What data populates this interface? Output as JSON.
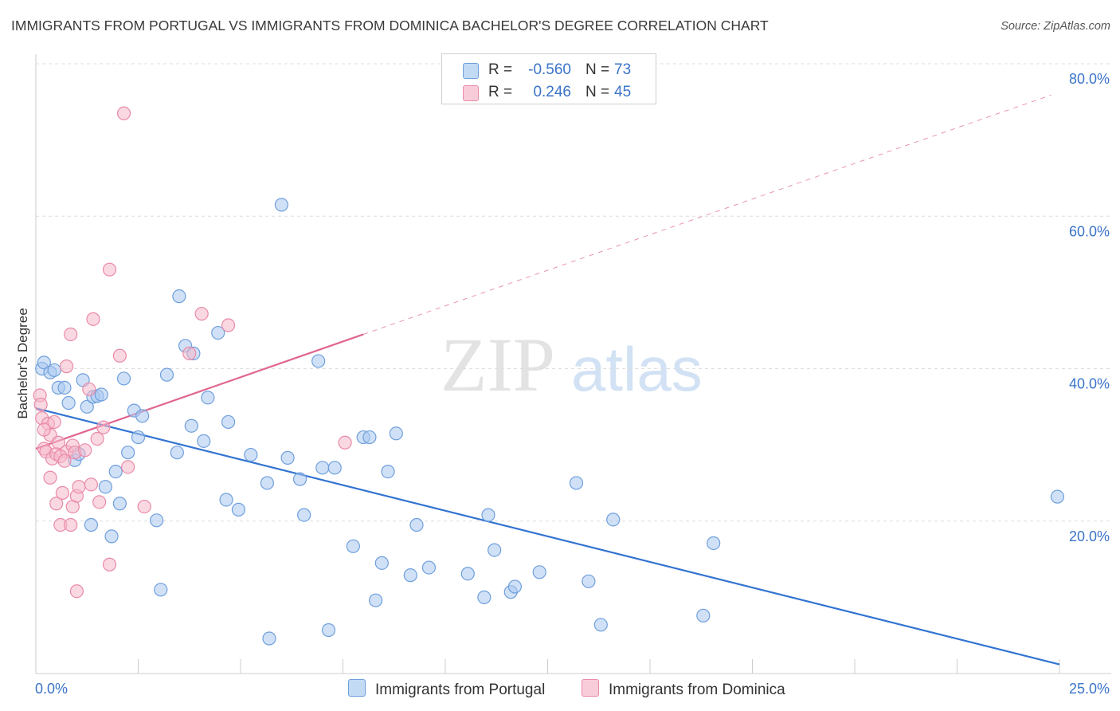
{
  "title": "IMMIGRANTS FROM PORTUGAL VS IMMIGRANTS FROM DOMINICA BACHELOR'S DEGREE CORRELATION CHART",
  "source": "Source: ZipAtlas.com",
  "watermark": {
    "zip": "ZIP",
    "atlas": "atlas"
  },
  "colors": {
    "portugal_fill": "#a9c8f0",
    "portugal_stroke": "#6f9fdc",
    "portugal_line": "#3274d1",
    "dominica_fill": "#f6b8cb",
    "dominica_stroke": "#e98aa8",
    "dominica_line": "#e0668f",
    "axis_label": "#3b74c9",
    "grid": "#dddddd"
  },
  "legend": {
    "rows": [
      {
        "r_label": "R =",
        "r_value": "-0.560",
        "n_label": "N =",
        "n_value": "73"
      },
      {
        "r_label": "R =",
        "r_value": "0.246",
        "n_label": "N =",
        "n_value": "45"
      }
    ]
  },
  "chart_data": {
    "type": "scatter",
    "xlabel": "",
    "ylabel": "Bachelor's Degree",
    "xlim": [
      0,
      25
    ],
    "ylim": [
      0,
      80
    ],
    "x_tick_labels": [
      "0.0%",
      "25.0%"
    ],
    "y_tick_labels": [
      "20.0%",
      "40.0%",
      "60.0%",
      "80.0%"
    ],
    "grid": true,
    "legend_position": "bottom-center",
    "series": [
      {
        "name": "Immigrants from Portugal",
        "points": [
          [
            0.15,
            40.0
          ],
          [
            0.2,
            40.8
          ],
          [
            0.35,
            39.5
          ],
          [
            0.45,
            39.8
          ],
          [
            0.55,
            37.5
          ],
          [
            0.7,
            37.5
          ],
          [
            0.8,
            35.5
          ],
          [
            0.95,
            28.0
          ],
          [
            1.05,
            28.8
          ],
          [
            1.15,
            38.5
          ],
          [
            1.25,
            35.0
          ],
          [
            1.4,
            36.3
          ],
          [
            1.5,
            36.4
          ],
          [
            1.6,
            36.6
          ],
          [
            1.35,
            19.5
          ],
          [
            1.7,
            24.5
          ],
          [
            1.85,
            18.0
          ],
          [
            1.95,
            26.5
          ],
          [
            2.05,
            22.3
          ],
          [
            2.15,
            38.7
          ],
          [
            2.25,
            29.0
          ],
          [
            2.4,
            34.5
          ],
          [
            2.5,
            31.0
          ],
          [
            2.6,
            33.8
          ],
          [
            2.95,
            20.1
          ],
          [
            3.05,
            11.0
          ],
          [
            3.2,
            39.2
          ],
          [
            3.5,
            49.5
          ],
          [
            3.45,
            29.0
          ],
          [
            3.65,
            43.0
          ],
          [
            3.85,
            42.0
          ],
          [
            3.8,
            32.5
          ],
          [
            4.1,
            30.5
          ],
          [
            4.2,
            36.2
          ],
          [
            4.45,
            44.7
          ],
          [
            4.7,
            33.0
          ],
          [
            4.65,
            22.8
          ],
          [
            4.95,
            21.5
          ],
          [
            5.25,
            28.7
          ],
          [
            5.7,
            4.6
          ],
          [
            5.65,
            25.0
          ],
          [
            6.0,
            61.5
          ],
          [
            6.15,
            28.3
          ],
          [
            6.45,
            25.5
          ],
          [
            6.55,
            20.8
          ],
          [
            6.9,
            41.0
          ],
          [
            7.0,
            27.0
          ],
          [
            7.15,
            5.7
          ],
          [
            7.3,
            27.0
          ],
          [
            7.75,
            16.7
          ],
          [
            8.0,
            31.0
          ],
          [
            8.15,
            31.0
          ],
          [
            8.3,
            9.6
          ],
          [
            8.45,
            14.5
          ],
          [
            8.6,
            26.5
          ],
          [
            8.8,
            31.5
          ],
          [
            9.15,
            12.9
          ],
          [
            9.3,
            19.5
          ],
          [
            9.6,
            13.9
          ],
          [
            10.55,
            13.1
          ],
          [
            10.95,
            10.0
          ],
          [
            11.05,
            20.8
          ],
          [
            11.2,
            16.2
          ],
          [
            11.6,
            10.7
          ],
          [
            11.7,
            11.4
          ],
          [
            12.3,
            13.3
          ],
          [
            13.2,
            25.0
          ],
          [
            13.5,
            12.1
          ],
          [
            13.8,
            6.4
          ],
          [
            14.1,
            20.2
          ],
          [
            16.3,
            7.6
          ],
          [
            16.55,
            17.1
          ],
          [
            24.95,
            23.2
          ]
        ]
      },
      {
        "name": "Immigrants from Dominica",
        "points": [
          [
            0.1,
            36.5
          ],
          [
            0.12,
            35.3
          ],
          [
            0.15,
            33.5
          ],
          [
            0.2,
            29.5
          ],
          [
            0.25,
            29.1
          ],
          [
            0.3,
            32.8
          ],
          [
            0.35,
            31.3
          ],
          [
            0.35,
            25.7
          ],
          [
            0.4,
            28.2
          ],
          [
            0.45,
            33.0
          ],
          [
            0.5,
            28.8
          ],
          [
            0.5,
            22.3
          ],
          [
            0.55,
            30.3
          ],
          [
            0.6,
            19.5
          ],
          [
            0.65,
            23.7
          ],
          [
            0.75,
            40.3
          ],
          [
            0.75,
            29.1
          ],
          [
            0.85,
            44.5
          ],
          [
            0.85,
            19.5
          ],
          [
            0.9,
            21.9
          ],
          [
            0.9,
            29.9
          ],
          [
            0.95,
            29.0
          ],
          [
            1.0,
            23.3
          ],
          [
            1.0,
            10.8
          ],
          [
            1.05,
            24.5
          ],
          [
            1.2,
            29.3
          ],
          [
            1.3,
            37.3
          ],
          [
            1.35,
            24.8
          ],
          [
            1.4,
            46.5
          ],
          [
            1.5,
            30.8
          ],
          [
            1.55,
            22.5
          ],
          [
            1.65,
            32.3
          ],
          [
            1.8,
            14.3
          ],
          [
            1.8,
            53.0
          ],
          [
            2.05,
            41.7
          ],
          [
            2.15,
            73.5
          ],
          [
            2.25,
            27.1
          ],
          [
            2.65,
            21.9
          ],
          [
            3.75,
            42.0
          ],
          [
            4.05,
            47.2
          ],
          [
            4.7,
            45.7
          ],
          [
            7.55,
            30.3
          ],
          [
            0.2,
            32.0
          ],
          [
            0.6,
            28.5
          ],
          [
            0.7,
            27.9
          ]
        ]
      }
    ],
    "trend_lines": [
      {
        "series": "Immigrants from Portugal",
        "x": [
          0,
          25
        ],
        "y": [
          34.8,
          1.2
        ]
      },
      {
        "series": "Immigrants from Dominica",
        "x": [
          0,
          8.0
        ],
        "y": [
          29.5,
          44.5
        ]
      },
      {
        "series": "Immigrants from Dominica",
        "style": "dashed",
        "x": [
          8.0,
          24.8
        ],
        "y": [
          44.5,
          75.9
        ]
      }
    ]
  }
}
